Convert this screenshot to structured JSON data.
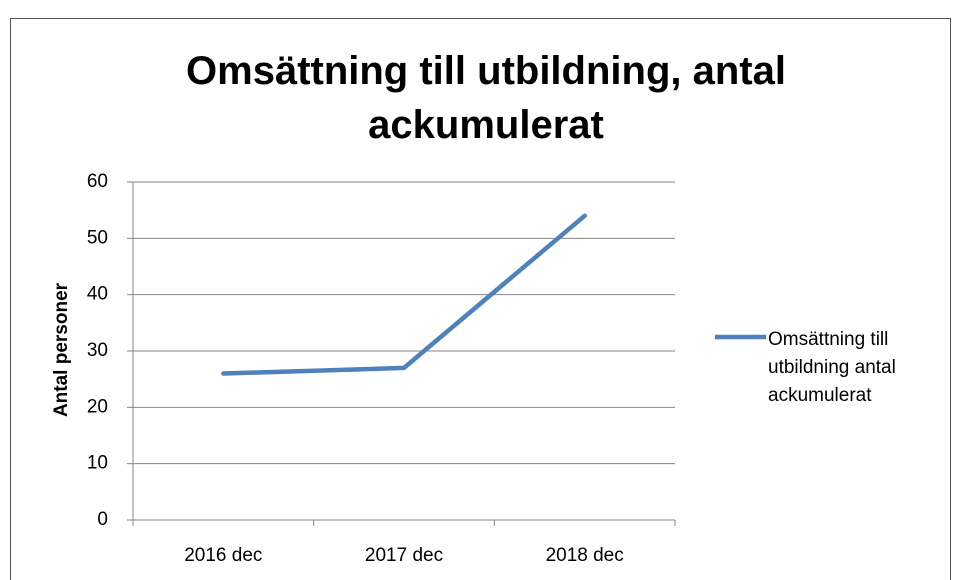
{
  "chart_data": {
    "type": "line",
    "title": "Omsättning till utbildning, antal ackumulerat",
    "y_label": "Antal personer",
    "categories": [
      "2016 dec",
      "2017 dec",
      "2018 dec"
    ],
    "series": [
      {
        "name": "Omsättning till utbildning antal ackumulerat",
        "color": "#4f81bd",
        "values": [
          26,
          27,
          54
        ]
      }
    ],
    "ylim": [
      0,
      60
    ],
    "yticks": [
      0,
      10,
      20,
      30,
      40,
      50,
      60
    ],
    "grid": true,
    "legend": "right"
  }
}
